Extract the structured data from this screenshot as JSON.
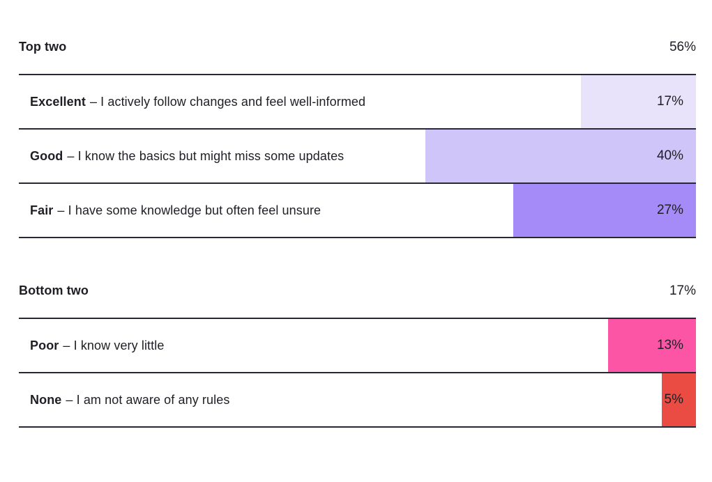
{
  "chart_data": {
    "type": "bar",
    "orientation": "horizontal",
    "note": "right-aligned bars, bar width = percent of full row width",
    "unit": "%",
    "xlim": [
      0,
      100
    ],
    "grid": false,
    "legend": false,
    "groups": [
      {
        "title": "Top two",
        "total_label": "56%",
        "total_value": 56,
        "rows": [
          {
            "label": "Excellent",
            "description": "– I actively follow changes and feel well-informed",
            "value": 17,
            "value_label": "17%",
            "color": "#e8e3fb"
          },
          {
            "label": "Good",
            "description": "– I know the basics but might miss some updates",
            "value": 40,
            "value_label": "40%",
            "color": "#cfc5f9"
          },
          {
            "label": "Fair",
            "description": "– I have some knowledge but often feel unsure",
            "value": 27,
            "value_label": "27%",
            "color": "#a48bf8"
          }
        ]
      },
      {
        "title": "Bottom two",
        "total_label": "17%",
        "total_value": 17,
        "rows": [
          {
            "label": "Poor",
            "description": "– I know very little",
            "value": 13,
            "value_label": "13%",
            "color": "#fc55a6"
          },
          {
            "label": "None",
            "description": "– I am not aware of any rules",
            "value": 5,
            "value_label": "5%",
            "color": "#ea4b43"
          }
        ]
      }
    ],
    "colors": {
      "text": "#1f1e24",
      "divider": "#282734",
      "background": "#ffffff"
    }
  }
}
